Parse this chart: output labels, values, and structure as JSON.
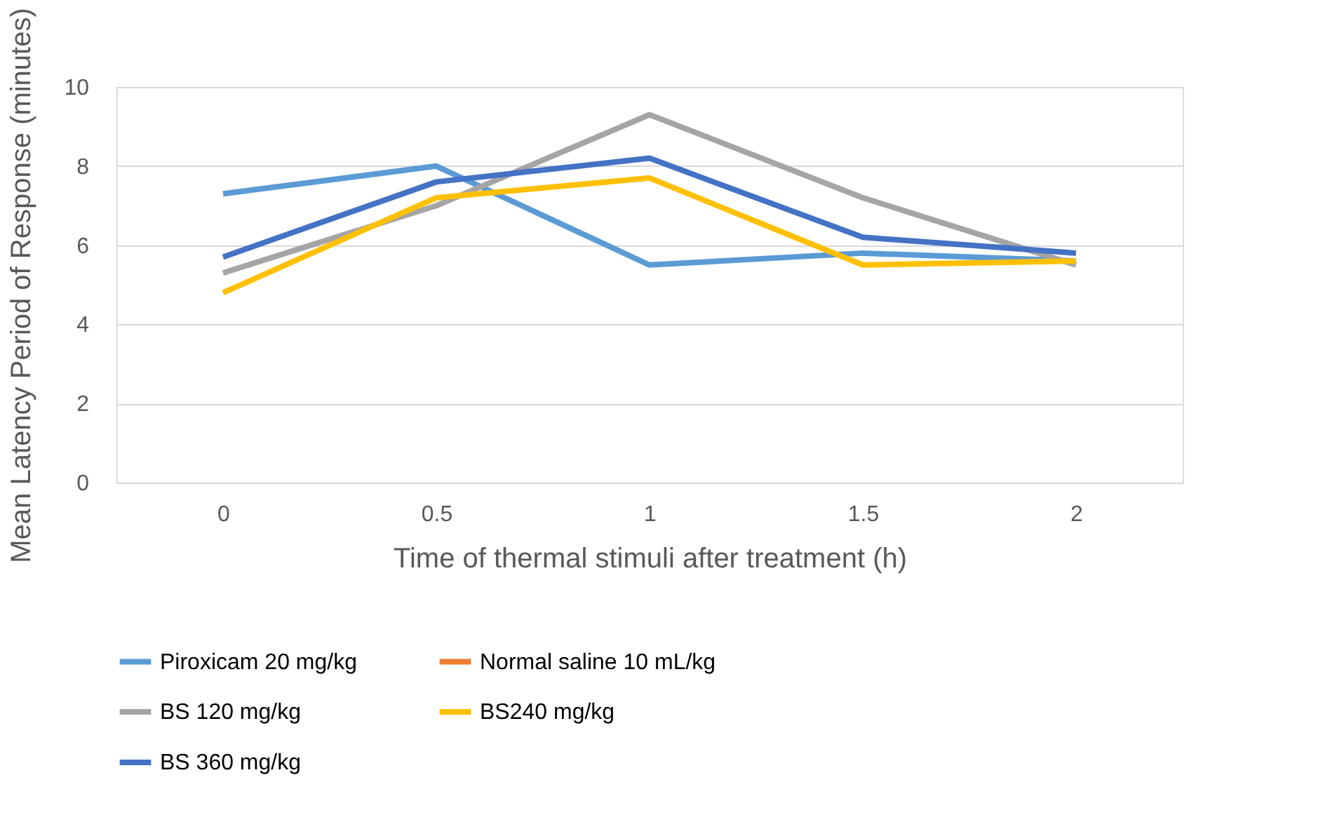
{
  "chart_data": {
    "type": "line",
    "xlabel": "Time of thermal stimuli after treatment (h)",
    "ylabel": "Mean Latency Period of Response (minutes)",
    "categories": [
      "0",
      "0.5",
      "1",
      "1.5",
      "2"
    ],
    "series": [
      {
        "name": "Piroxicam 20 mg/kg",
        "color": "#5b9bd5",
        "values": [
          7.3,
          8.0,
          5.5,
          5.8,
          5.6
        ]
      },
      {
        "name": "Normal saline 10 mL/kg",
        "color": "#ed7d31",
        "values": [
          null,
          null,
          null,
          null,
          null
        ]
      },
      {
        "name": "BS 120 mg/kg",
        "color": "#a5a5a5",
        "values": [
          5.3,
          7.0,
          9.3,
          7.2,
          5.5
        ]
      },
      {
        "name": "BS240 mg/kg",
        "color": "#ffc000",
        "values": [
          4.8,
          7.2,
          7.7,
          5.5,
          5.6
        ]
      },
      {
        "name": "BS 360 mg/kg",
        "color": "#4472c4",
        "values": [
          5.7,
          7.6,
          8.2,
          6.2,
          5.8
        ]
      }
    ],
    "ylim": [
      0,
      10
    ],
    "yticks": [
      0,
      2,
      4,
      6,
      8,
      10
    ],
    "grid": "y",
    "legend": "bottom",
    "marker": "none",
    "line_style": "solid"
  }
}
